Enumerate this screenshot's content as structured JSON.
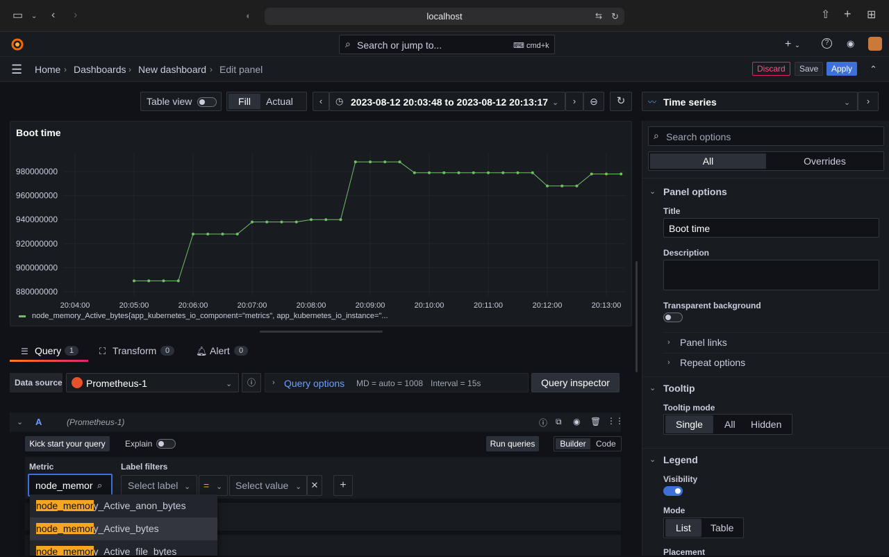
{
  "browser": {
    "url": "localhost"
  },
  "nav": {
    "search_placeholder": "Search or jump to...",
    "search_shortcut": "cmd+k"
  },
  "breadcrumb": {
    "items": [
      "Home",
      "Dashboards",
      "New dashboard",
      "Edit panel"
    ],
    "sep": "›"
  },
  "actions": {
    "discard": "Discard",
    "save": "Save",
    "apply": "Apply"
  },
  "toolbar": {
    "table_view": "Table view",
    "fill": "Fill",
    "actual": "Actual",
    "time_range": "2023-08-12 20:03:48 to 2023-08-12 20:13:17",
    "viz_type": "Time series"
  },
  "panel": {
    "title": "Boot time",
    "legend": "node_memory_Active_bytes{app_kubernetes_io_component=\"metrics\", app_kubernetes_io_instance=\"...",
    "series_color": "#73bf69"
  },
  "chart_data": {
    "type": "line",
    "title": "Boot time",
    "ylim": [
      875000000,
      995000000
    ],
    "yticks": [
      "980000000",
      "960000000",
      "940000000",
      "920000000",
      "900000000",
      "880000000"
    ],
    "xticks": [
      "20:04:00",
      "20:05:00",
      "20:06:00",
      "20:07:00",
      "20:08:00",
      "20:09:00",
      "20:10:00",
      "20:11:00",
      "20:12:00",
      "20:13:00"
    ],
    "series": [
      {
        "name": "node_memory_Active_bytes",
        "x": [
          "20:05:00",
          "20:05:15",
          "20:05:30",
          "20:05:45",
          "20:06:00",
          "20:06:15",
          "20:06:30",
          "20:06:45",
          "20:07:00",
          "20:07:15",
          "20:07:30",
          "20:07:45",
          "20:08:00",
          "20:08:15",
          "20:08:30",
          "20:08:45",
          "20:09:00",
          "20:09:15",
          "20:09:30",
          "20:09:45",
          "20:10:00",
          "20:10:15",
          "20:10:30",
          "20:10:45",
          "20:11:00",
          "20:11:15",
          "20:11:30",
          "20:11:45",
          "20:12:00",
          "20:12:15",
          "20:12:30",
          "20:12:45",
          "20:13:00",
          "20:13:15"
        ],
        "values": [
          889000000,
          889000000,
          889000000,
          889000000,
          928000000,
          928000000,
          928000000,
          928000000,
          938000000,
          938000000,
          938000000,
          938000000,
          940000000,
          940000000,
          940000000,
          988000000,
          988000000,
          988000000,
          988000000,
          979000000,
          979000000,
          979000000,
          979000000,
          979000000,
          979000000,
          979000000,
          979000000,
          979000000,
          968000000,
          968000000,
          968000000,
          978000000,
          978000000,
          978000000
        ]
      }
    ]
  },
  "tabs": [
    {
      "label": "Query",
      "count": "1"
    },
    {
      "label": "Transform",
      "count": "0"
    },
    {
      "label": "Alert",
      "count": "0"
    }
  ],
  "query": {
    "datasource_label": "Data source",
    "datasource": "Prometheus-1",
    "query_options": "Query options",
    "md": "MD = auto = 1008",
    "interval": "Interval = 15s",
    "inspector": "Query inspector",
    "row_letter": "A",
    "row_source": "(Prometheus-1)",
    "kick_start": "Kick start your query",
    "explain": "Explain",
    "run_queries": "Run queries",
    "builder": "Builder",
    "code": "Code",
    "metric_label": "Metric",
    "metric_value": "node_memor",
    "label_filters": "Label filters",
    "select_label": "Select label",
    "operator": "=",
    "select_value": "Select value",
    "suggestions": [
      {
        "match": "node_memor",
        "rest": "y_Active_anon_bytes"
      },
      {
        "match": "node_memor",
        "rest": "y_Active_bytes"
      },
      {
        "match": "node_memor",
        "rest": "y_Active_file_bytes"
      }
    ]
  },
  "options": {
    "search_placeholder": "Search options",
    "all": "All",
    "overrides": "Overrides",
    "panel_options": "Panel options",
    "title_label": "Title",
    "title_value": "Boot time",
    "description_label": "Description",
    "transparent_label": "Transparent background",
    "panel_links": "Panel links",
    "repeat_options": "Repeat options",
    "tooltip": "Tooltip",
    "tooltip_mode": "Tooltip mode",
    "tooltip_modes": [
      "Single",
      "All",
      "Hidden"
    ],
    "legend": "Legend",
    "visibility": "Visibility",
    "mode": "Mode",
    "modes": [
      "List",
      "Table"
    ],
    "placement": "Placement"
  }
}
